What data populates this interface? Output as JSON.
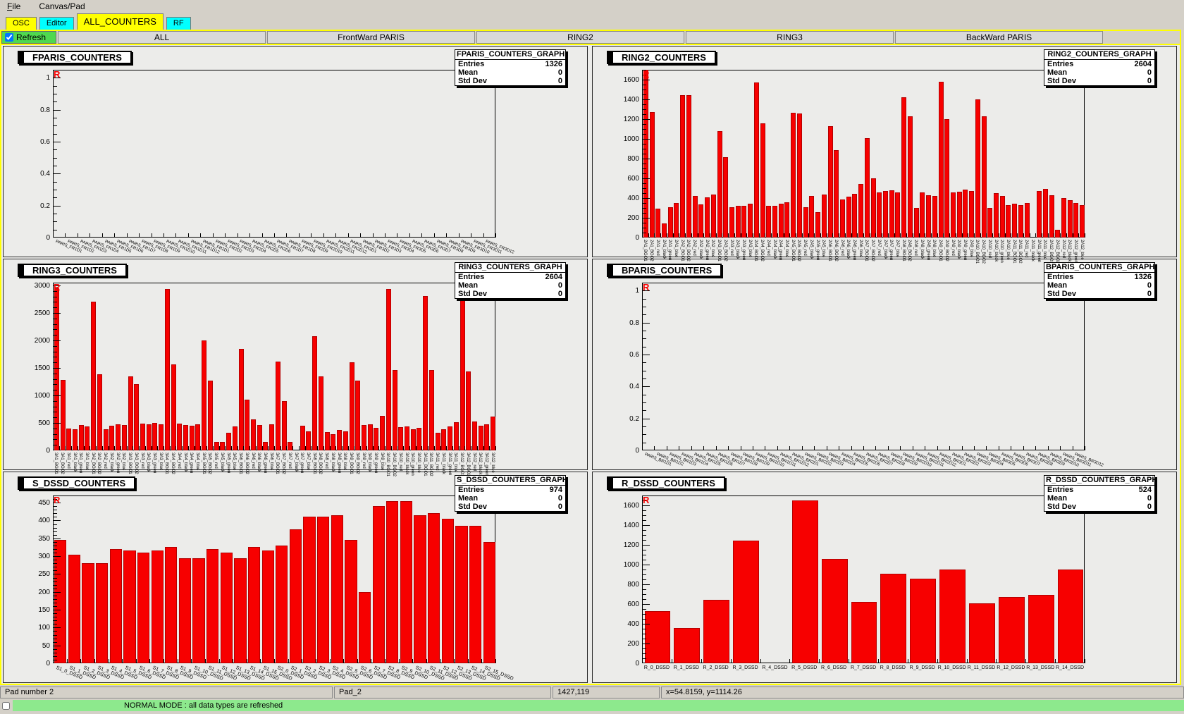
{
  "menu": {
    "items": [
      "File",
      "Canvas/Pad"
    ]
  },
  "tabs": [
    {
      "label": "OSC",
      "color": "yellow",
      "active": false
    },
    {
      "label": "Editor",
      "color": "cyan",
      "active": false
    },
    {
      "label": "ALL_COUNTERS",
      "color": "yellow",
      "active": true
    },
    {
      "label": "RF",
      "color": "cyan",
      "active": false
    }
  ],
  "toolbar": {
    "refresh_label": "Refresh",
    "refresh_checked": true,
    "buttons": [
      "ALL",
      "FrontWard PARIS",
      "RING2",
      "RING3",
      "BackWard PARIS"
    ]
  },
  "status_bar": {
    "pad_info": "Pad number 2",
    "pad_name": "Pad_2",
    "coords": "1427,119",
    "position": "x=54.8159, y=1114.26"
  },
  "bottom_bar": {
    "message": "NORMAL MODE : all data types are refreshed"
  },
  "colors": {
    "bar": "#f70000",
    "tab_yellow": "#ffff00",
    "tab_cyan": "#00ffff",
    "refresh_green": "#4fd84f",
    "message_green": "#8de98d",
    "canvas_bg": "#ececea"
  },
  "chart_data": [
    {
      "id": "fparis",
      "type": "bar",
      "title": "FPARIS_COUNTERS",
      "marker": "R",
      "stats": {
        "title": "FPARIS_COUNTERS_GRAPH",
        "rows": [
          [
            "Entries",
            "1326"
          ],
          [
            "Mean",
            "0"
          ],
          [
            "Std Dev",
            "0"
          ]
        ]
      },
      "ylim": [
        0,
        1.05
      ],
      "yticks": [
        0,
        0.2,
        0.4,
        0.6,
        0.8,
        1
      ],
      "ytick_labels": [
        "0",
        "0.2",
        "0.4",
        "0.6",
        "0.8",
        "1"
      ],
      "minor_step": 0.05,
      "label_style": "slant",
      "label_font": 6,
      "categories": [
        "PARIS_FR1D1",
        "PARIS_FR1D2",
        "PARIS_FR1D3",
        "PARIS_FR1D4",
        "PARIS_FR1D5",
        "PARIS_FR1D6",
        "PARIS_FR1D7",
        "PARIS_FR1D8",
        "PARIS_FR1D9",
        "PARIS_FR1D10",
        "PARIS_FR1D11",
        "PARIS_FR1D12",
        "PARIS_FR2D1",
        "PARIS_FR2D2",
        "PARIS_FR2D3",
        "PARIS_FR2D4",
        "PARIS_FR2D5",
        "PARIS_FR2D6",
        "PARIS_FR2D7",
        "PARIS_FR2D8",
        "PARIS_FR2D9",
        "PARIS_FR2D10",
        "PARIS_FR2D11",
        "PARIS_FR2D12",
        "PARIS_FR3D1",
        "PARIS_FR3D2",
        "PARIS_FR3D3",
        "PARIS_FR3D4",
        "PARIS_FR3D5",
        "PARIS_FR3D6",
        "PARIS_FR3D7",
        "PARIS_FR3D8",
        "PARIS_FR3D9",
        "PARIS_FR3D10",
        "PARIS_FR3D11",
        "PARIS_FR3D12"
      ],
      "values": [
        0,
        0,
        0,
        0,
        0,
        0,
        0,
        0,
        0,
        0,
        0,
        0,
        0,
        0,
        0,
        0,
        0,
        0,
        0,
        0,
        0,
        0,
        0,
        0,
        0,
        0,
        0,
        0,
        0,
        0,
        0,
        0,
        0,
        0,
        0,
        0
      ]
    },
    {
      "id": "ring2",
      "type": "bar",
      "title": "RING2_COUNTERS",
      "marker": "R",
      "stats": {
        "title": "RING2_COUNTERS_GRAPH",
        "rows": [
          [
            "Entries",
            "2604"
          ],
          [
            "Mean",
            "0"
          ],
          [
            "Std Dev",
            "0"
          ]
        ]
      },
      "ylim": [
        0,
        1700
      ],
      "yticks": [
        0,
        200,
        400,
        600,
        800,
        1000,
        1200,
        1400,
        1600
      ],
      "ytick_labels": [
        "0",
        "200",
        "400",
        "600",
        "800",
        "1000",
        "1200",
        "1400",
        "1600"
      ],
      "minor_step": 50,
      "label_style": "vertical",
      "label_font": 6,
      "categories": [
        "2A1_BGO1",
        "2A1_BGO2",
        "2A1_red",
        "2A1_black",
        "2A1_green",
        "2A1_blue",
        "2A2_BGO1",
        "2A2_BGO2",
        "2A2_red",
        "2A2_black",
        "2A2_green",
        "2A2_blue",
        "2A3_BGO1",
        "2A3_BGO2",
        "2A3_red",
        "2A3_black",
        "2A3_green",
        "2A3_blue",
        "2A4_BGO1",
        "2A4_BGO2",
        "2A4_red",
        "2A4_black",
        "2A4_green",
        "2A4_blue",
        "2A5_BGO1",
        "2A5_BGO2",
        "2A5_red",
        "2A5_black",
        "2A5_green",
        "2A5_blue",
        "2A6_BGO1",
        "2A6_BGO2",
        "2A6_red",
        "2A6_black",
        "2A6_green",
        "2A6_blue",
        "2A7_BGO1",
        "2A7_BGO2",
        "2A7_red",
        "2A7_black",
        "2A7_green",
        "2A7_blue",
        "2A8_BGO1",
        "2A8_BGO2",
        "2A8_red",
        "2A8_black",
        "2A8_green",
        "2A8_blue",
        "2A9_BGO1",
        "2A9_BGO2",
        "2A9_red",
        "2A9_black",
        "2A9_green",
        "2A9_blue",
        "2A10_BGO1",
        "2A10_BGO2",
        "2A10_red",
        "2A10_black",
        "2A10_green",
        "2A10_blue",
        "2A11_BGO1",
        "2A11_BGO2",
        "2A11_red",
        "2A11_black",
        "2A11_green",
        "2A11_blue",
        "2A12_BGO1",
        "2A12_BGO2",
        "2A12_red",
        "2A12_black",
        "2A12_green",
        "2A12_blue"
      ],
      "values": [
        1700,
        1270,
        290,
        140,
        305,
        350,
        1445,
        1440,
        420,
        335,
        410,
        435,
        1080,
        815,
        305,
        325,
        320,
        340,
        1575,
        1160,
        325,
        320,
        340,
        355,
        1265,
        1255,
        310,
        420,
        255,
        435,
        1130,
        885,
        385,
        415,
        440,
        545,
        1005,
        600,
        460,
        470,
        480,
        460,
        1420,
        1230,
        300,
        455,
        430,
        420,
        1580,
        1200,
        460,
        465,
        485,
        475,
        1400,
        1230,
        300,
        450,
        420,
        330,
        340,
        330,
        350,
        0,
        470,
        490,
        430,
        80,
        400,
        380,
        350,
        330
      ]
    },
    {
      "id": "ring3",
      "type": "bar",
      "title": "RING3_COUNTERS",
      "marker": "R",
      "stats": {
        "title": "RING3_COUNTERS_GRAPH",
        "rows": [
          [
            "Entries",
            "2604"
          ],
          [
            "Mean",
            "0"
          ],
          [
            "Std Dev",
            "0"
          ]
        ]
      },
      "ylim": [
        0,
        3050
      ],
      "yticks": [
        0,
        500,
        1000,
        1500,
        2000,
        2500,
        3000
      ],
      "ytick_labels": [
        "0",
        "500",
        "1000",
        "1500",
        "2000",
        "2500",
        "3000"
      ],
      "minor_step": 100,
      "label_style": "vertical",
      "label_font": 6,
      "categories": [
        "3A1_BGO1",
        "3A1_BGO2",
        "3A1_red",
        "3A1_black",
        "3A1_green",
        "3A1_blue",
        "3A2_BGO1",
        "3A2_BGO2",
        "3A2_red",
        "3A2_black",
        "3A2_green",
        "3A2_blue",
        "3A3_BGO1",
        "3A3_BGO2",
        "3A3_red",
        "3A3_black",
        "3A3_green",
        "3A3_blue",
        "3A4_BGO1",
        "3A4_BGO2",
        "3A4_red",
        "3A4_black",
        "3A4_green",
        "3A4_blue",
        "3A5_BGO1",
        "3A5_BGO2",
        "3A5_red",
        "3A5_black",
        "3A5_green",
        "3A5_blue",
        "3A6_BGO1",
        "3A6_BGO2",
        "3A6_red",
        "3A6_black",
        "3A6_green",
        "3A6_blue",
        "3A7_BGO1",
        "3A7_BGO2",
        "3A7_red",
        "3A7_black",
        "3A7_green",
        "3A7_blue",
        "3A8_BGO1",
        "3A8_BGO2",
        "3A8_red",
        "3A8_black",
        "3A8_green",
        "3A8_blue",
        "3A9_BGO1",
        "3A9_BGO2",
        "3A9_red",
        "3A9_black",
        "3A9_green",
        "3A9_blue",
        "3A10_BGO1",
        "3A10_BGO2",
        "3A10_red",
        "3A10_black",
        "3A10_green",
        "3A10_blue",
        "3A11_BGO1",
        "3A11_BGO2",
        "3A11_red",
        "3A11_black",
        "3A11_green",
        "3A11_blue",
        "3A12_BGO1",
        "3A12_BGO2",
        "3A12_red",
        "3A12_black",
        "3A12_green",
        "3A12_blue"
      ],
      "values": [
        2950,
        1280,
        400,
        380,
        460,
        430,
        2700,
        1390,
        380,
        450,
        480,
        460,
        1350,
        1210,
        490,
        480,
        500,
        480,
        2930,
        1560,
        490,
        460,
        450,
        480,
        2000,
        1270,
        160,
        160,
        320,
        430,
        1840,
        920,
        570,
        460,
        160,
        480,
        1620,
        900,
        160,
        0,
        450,
        350,
        2080,
        1350,
        330,
        290,
        370,
        340,
        1600,
        1270,
        460,
        470,
        410,
        630,
        2930,
        1460,
        420,
        440,
        380,
        410,
        2810,
        1460,
        320,
        380,
        430,
        510,
        2780,
        1440,
        520,
        450,
        480,
        620
      ]
    },
    {
      "id": "bparis",
      "type": "bar",
      "title": "BPARIS_COUNTERS",
      "marker": "R",
      "stats": {
        "title": "BPARIS_COUNTERS_GRAPH",
        "rows": [
          [
            "Entries",
            "1326"
          ],
          [
            "Mean",
            "0"
          ],
          [
            "Std Dev",
            "0"
          ]
        ]
      },
      "ylim": [
        0,
        1.05
      ],
      "yticks": [
        0,
        0.2,
        0.4,
        0.6,
        0.8,
        1
      ],
      "ytick_labels": [
        "0",
        "0.2",
        "0.4",
        "0.6",
        "0.8",
        "1"
      ],
      "minor_step": 0.05,
      "label_style": "slant",
      "label_font": 6,
      "categories": [
        "PARIS_BR1D1",
        "PARIS_BR1D2",
        "PARIS_BR1D3",
        "PARIS_BR1D4",
        "PARIS_BR1D5",
        "PARIS_BR1D6",
        "PARIS_BR1D7",
        "PARIS_BR1D8",
        "PARIS_BR1D9",
        "PARIS_BR1D10",
        "PARIS_BR1D11",
        "PARIS_BR1D12",
        "PARIS_BR2D1",
        "PARIS_BR2D2",
        "PARIS_BR2D3",
        "PARIS_BR2D4",
        "PARIS_BR2D5",
        "PARIS_BR2D6",
        "PARIS_BR2D7",
        "PARIS_BR2D8",
        "PARIS_BR2D9",
        "PARIS_BR2D10",
        "PARIS_BR2D11",
        "PARIS_BR2D12",
        "PARIS_BR3D1",
        "PARIS_BR3D2",
        "PARIS_BR3D3",
        "PARIS_BR3D4",
        "PARIS_BR3D5",
        "PARIS_BR3D6",
        "PARIS_BR3D7",
        "PARIS_BR3D8",
        "PARIS_BR3D9",
        "PARIS_BR3D10",
        "PARIS_BR3D11",
        "PARIS_BR3D12"
      ],
      "values": [
        0,
        0,
        0,
        0,
        0,
        0,
        0,
        0,
        0,
        0,
        0,
        0,
        0,
        0,
        0,
        0,
        0,
        0,
        0,
        0,
        0,
        0,
        0,
        0,
        0,
        0,
        0,
        0,
        0,
        0,
        0,
        0,
        0,
        0,
        0,
        0
      ]
    },
    {
      "id": "sdssd",
      "type": "bar",
      "title": "S_DSSD_COUNTERS",
      "marker": "R",
      "stats": {
        "title": "S_DSSD_COUNTERS_GRAPH",
        "rows": [
          [
            "Entries",
            "974"
          ],
          [
            "Mean",
            "0"
          ],
          [
            "Std Dev",
            "0"
          ]
        ]
      },
      "ylim": [
        0,
        470
      ],
      "yticks": [
        0,
        50,
        100,
        150,
        200,
        250,
        300,
        350,
        400,
        450
      ],
      "ytick_labels": [
        "0",
        "50",
        "100",
        "150",
        "200",
        "250",
        "300",
        "350",
        "400",
        "450"
      ],
      "minor_step": 10,
      "label_style": "slant",
      "label_font": 7,
      "categories": [
        "S1_0_DSSD",
        "S1_1_DSSD",
        "S1_2_DSSD",
        "S1_3_DSSD",
        "S1_4_DSSD",
        "S1_5_DSSD",
        "S1_6_DSSD",
        "S1_7_DSSD",
        "S1_8_DSSD",
        "S1_9_DSSD",
        "S1_10_DSSD",
        "S1_11_DSSD",
        "S1_12_DSSD",
        "S1_13_DSSD",
        "S1_14_DSSD",
        "S1_15_DSSD",
        "S2_0_DSSD",
        "S2_1_DSSD",
        "S2_2_DSSD",
        "S2_3_DSSD",
        "S2_4_DSSD",
        "S2_5_DSSD",
        "S2_6_DSSD",
        "S2_7_DSSD",
        "S2_8_DSSD",
        "S2_9_DSSD",
        "S2_10_DSSD",
        "S2_11_DSSD",
        "S2_12_DSSD",
        "S2_13_DSSD",
        "S2_14_DSSD",
        "S2_15_DSSD"
      ],
      "values": [
        345,
        305,
        280,
        280,
        320,
        315,
        310,
        315,
        325,
        295,
        295,
        320,
        310,
        295,
        325,
        315,
        330,
        375,
        410,
        410,
        415,
        345,
        200,
        440,
        455,
        455,
        415,
        420,
        405,
        385,
        385,
        340
      ]
    },
    {
      "id": "rdssd",
      "type": "bar",
      "title": "R_DSSD_COUNTERS",
      "marker": "R",
      "stats": {
        "title": "R_DSSD_COUNTERS_GRAPH",
        "rows": [
          [
            "Entries",
            "524"
          ],
          [
            "Mean",
            "0"
          ],
          [
            "Std Dev",
            "0"
          ]
        ]
      },
      "ylim": [
        0,
        1700
      ],
      "yticks": [
        0,
        200,
        400,
        600,
        800,
        1000,
        1200,
        1400,
        1600
      ],
      "ytick_labels": [
        "0",
        "200",
        "400",
        "600",
        "800",
        "1000",
        "1200",
        "1400",
        "1600"
      ],
      "minor_step": 50,
      "label_style": "horizontal",
      "label_font": 7,
      "categories": [
        "R_0_DSSD",
        "R_1_DSSD",
        "R_2_DSSD",
        "R_3_DSSD",
        "R_4_DSSD",
        "R_5_DSSD",
        "R_6_DSSD",
        "R_7_DSSD",
        "R_8_DSSD",
        "R_9_DSSD",
        "R_10_DSSD",
        "R_11_DSSD",
        "R_12_DSSD",
        "R_13_DSSD",
        "R_14_DSSD"
      ],
      "values": [
        530,
        360,
        640,
        1240,
        0,
        1650,
        1060,
        620,
        910,
        860,
        950,
        610,
        670,
        690,
        950
      ]
    }
  ]
}
